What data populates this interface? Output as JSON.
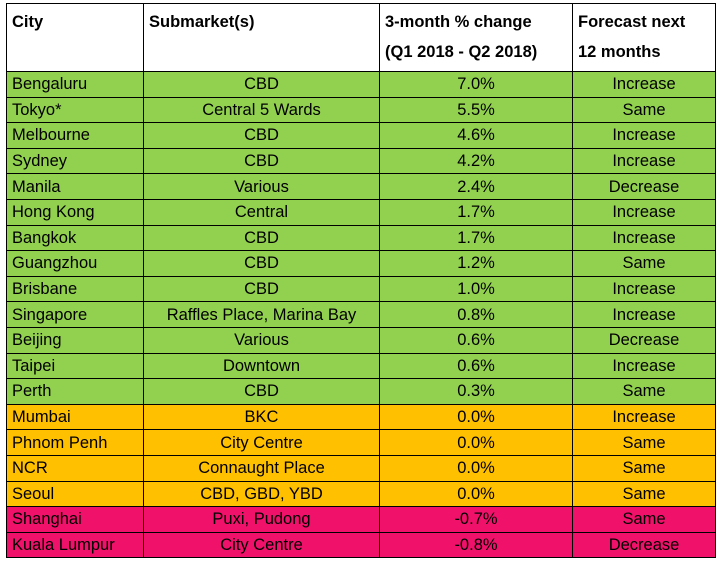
{
  "table": {
    "headers": {
      "city": "City",
      "submarket": "Submarket(s)",
      "change_line1": "3-month % change",
      "change_line2": "(Q1 2018 - Q2 2018)",
      "forecast_line1": "Forecast next",
      "forecast_line2": "12 months"
    },
    "colors": {
      "green": "#92d050",
      "orange": "#ffc000",
      "pink": "#f0116a"
    },
    "rows": [
      {
        "city": "Bengaluru",
        "submarket": "CBD",
        "change": "7.0%",
        "forecast": "Increase",
        "color": "green"
      },
      {
        "city": "Tokyo*",
        "submarket": "Central 5 Wards",
        "change": "5.5%",
        "forecast": "Same",
        "color": "green"
      },
      {
        "city": "Melbourne",
        "submarket": "CBD",
        "change": "4.6%",
        "forecast": "Increase",
        "color": "green"
      },
      {
        "city": "Sydney",
        "submarket": "CBD",
        "change": "4.2%",
        "forecast": "Increase",
        "color": "green"
      },
      {
        "city": "Manila",
        "submarket": "Various",
        "change": "2.4%",
        "forecast": "Decrease",
        "color": "green"
      },
      {
        "city": "Hong Kong",
        "submarket": "Central",
        "change": "1.7%",
        "forecast": "Increase",
        "color": "green"
      },
      {
        "city": "Bangkok",
        "submarket": "CBD",
        "change": "1.7%",
        "forecast": "Increase",
        "color": "green"
      },
      {
        "city": "Guangzhou",
        "submarket": "CBD",
        "change": "1.2%",
        "forecast": "Same",
        "color": "green"
      },
      {
        "city": "Brisbane",
        "submarket": "CBD",
        "change": "1.0%",
        "forecast": "Increase",
        "color": "green"
      },
      {
        "city": "Singapore",
        "submarket": "Raffles Place, Marina Bay",
        "change": "0.8%",
        "forecast": "Increase",
        "color": "green"
      },
      {
        "city": "Beijing",
        "submarket": "Various",
        "change": "0.6%",
        "forecast": "Decrease",
        "color": "green"
      },
      {
        "city": "Taipei",
        "submarket": "Downtown",
        "change": "0.6%",
        "forecast": "Increase",
        "color": "green"
      },
      {
        "city": "Perth",
        "submarket": "CBD",
        "change": "0.3%",
        "forecast": "Same",
        "color": "green"
      },
      {
        "city": "Mumbai",
        "submarket": "BKC",
        "change": "0.0%",
        "forecast": "Increase",
        "color": "orange"
      },
      {
        "city": "Phnom Penh",
        "submarket": "City Centre",
        "change": "0.0%",
        "forecast": "Same",
        "color": "orange"
      },
      {
        "city": "NCR",
        "submarket": "Connaught Place",
        "change": "0.0%",
        "forecast": "Same",
        "color": "orange"
      },
      {
        "city": "Seoul",
        "submarket": "CBD, GBD, YBD",
        "change": "0.0%",
        "forecast": "Same",
        "color": "orange"
      },
      {
        "city": "Shanghai",
        "submarket": "Puxi, Pudong",
        "change": "-0.7%",
        "forecast": "Same",
        "color": "pink"
      },
      {
        "city": "Kuala Lumpur",
        "submarket": "City Centre",
        "change": "-0.8%",
        "forecast": "Decrease",
        "color": "pink"
      }
    ]
  }
}
